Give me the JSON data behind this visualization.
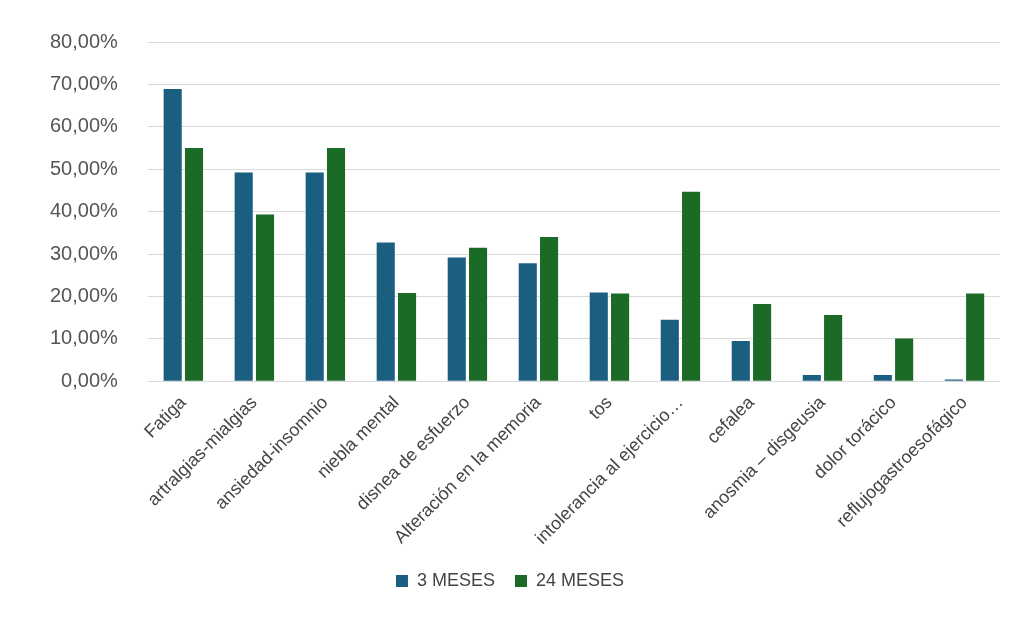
{
  "chart_data": {
    "type": "bar",
    "categories": [
      "Fatiga",
      "artralgias-mialgias",
      "ansiedad-insomnio",
      "niebla mental",
      "disnea de esfuerzo",
      "Alteración en la memoria",
      "tos",
      "intolerancia al ejercicio…",
      "cefalea",
      "anosmia – disgeusia",
      "dolor torácico",
      "reflujogastroesofágico"
    ],
    "series": [
      {
        "name": "3 MESES",
        "color": "#1a5e80",
        "values": [
          68.9,
          49.2,
          49.2,
          32.7,
          29.2,
          27.8,
          20.9,
          14.5,
          9.5,
          1.5,
          1.5,
          0.4
        ]
      },
      {
        "name": "24 MESES",
        "color": "#1b6b27",
        "values": [
          55.0,
          39.3,
          55.0,
          20.8,
          31.5,
          34.0,
          20.7,
          44.7,
          18.2,
          15.6,
          10.1,
          20.7
        ]
      }
    ],
    "ylim": [
      0,
      80
    ],
    "yticks": [
      {
        "value": 0,
        "label": "0,00%"
      },
      {
        "value": 10,
        "label": "10,00%"
      },
      {
        "value": 20,
        "label": "20,00%"
      },
      {
        "value": 30,
        "label": "30,00%"
      },
      {
        "value": 40,
        "label": "40,00%"
      },
      {
        "value": 50,
        "label": "50,00%"
      },
      {
        "value": 60,
        "label": "60,00%"
      },
      {
        "value": 70,
        "label": "70,00%"
      },
      {
        "value": 80,
        "label": "80,00%"
      }
    ],
    "grid": "y",
    "legend": "bottom"
  }
}
